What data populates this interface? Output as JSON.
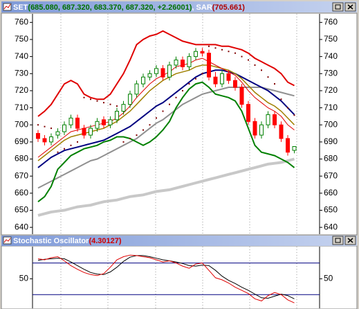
{
  "chart_data": [
    {
      "type": "candlestick",
      "header": [
        {
          "text": "SET",
          "color": "#ffffff"
        },
        {
          "text": "(685.080, 687.320, 683.370, 687.320, +2.26001)",
          "color": "#007000"
        },
        {
          "text": ", SAR",
          "color": "#ffffff"
        },
        {
          "text": "(705.661)",
          "color": "#b00000"
        }
      ],
      "ylim": [
        636,
        765
      ],
      "yticks": [
        640,
        650,
        660,
        670,
        680,
        690,
        700,
        710,
        720,
        730,
        740,
        750,
        760
      ],
      "up_color": "#008000",
      "down_color": "#ff0000",
      "open": [
        695,
        692,
        690,
        694,
        696,
        700,
        704,
        698,
        694,
        698,
        703,
        700,
        703,
        708,
        712,
        718,
        724,
        728,
        730,
        733,
        728,
        735,
        738,
        734,
        740,
        743,
        742,
        728,
        724,
        730,
        726,
        722,
        712,
        702,
        694,
        700,
        706,
        700,
        692,
        685.08
      ],
      "high": [
        697,
        694,
        695,
        698,
        702,
        706,
        706,
        700,
        700,
        704,
        705,
        705,
        710,
        714,
        720,
        726,
        730,
        732,
        735,
        735,
        737,
        740,
        740,
        742,
        745,
        745,
        744,
        731,
        732,
        732,
        728,
        724,
        714,
        704,
        702,
        708,
        708,
        702,
        694,
        687.32
      ],
      "low": [
        690,
        688,
        688,
        692,
        694,
        698,
        696,
        692,
        692,
        696,
        698,
        698,
        701,
        706,
        710,
        716,
        722,
        726,
        728,
        726,
        726,
        733,
        732,
        732,
        738,
        740,
        726,
        722,
        722,
        724,
        720,
        710,
        700,
        692,
        692,
        698,
        698,
        690,
        682,
        683.37
      ],
      "close": [
        692,
        690,
        693,
        696,
        700,
        704,
        698,
        694,
        698,
        702,
        700,
        703,
        708,
        712,
        718,
        724,
        728,
        730,
        733,
        728,
        735,
        738,
        734,
        740,
        743,
        742,
        728,
        724,
        730,
        726,
        722,
        712,
        702,
        694,
        700,
        706,
        700,
        692,
        684,
        687.32
      ],
      "overlays": [
        {
          "style": "line",
          "color": "#c8c8c8",
          "width": 4,
          "values": [
            647,
            648,
            649,
            649.5,
            650,
            651,
            652,
            652.5,
            653,
            654,
            655,
            655.5,
            656,
            657,
            658,
            658.5,
            659,
            660,
            661,
            661.5,
            662,
            663,
            664,
            665,
            666,
            667,
            668,
            669,
            670,
            671,
            672,
            673,
            674,
            675,
            676,
            677,
            677.5,
            678,
            679,
            680
          ]
        },
        {
          "style": "line",
          "color": "#909090",
          "width": 2,
          "values": [
            663,
            665,
            667,
            669,
            671,
            673,
            675,
            677,
            679,
            680,
            682,
            684,
            686,
            688,
            690,
            692,
            695,
            698,
            701,
            703,
            706,
            709,
            712,
            714,
            716,
            718,
            719,
            720,
            721,
            722,
            722,
            722,
            722,
            722,
            722,
            721,
            720,
            719,
            718,
            717
          ]
        },
        {
          "style": "line",
          "color": "#008000",
          "width": 2,
          "values": [
            655,
            658,
            664,
            674,
            678,
            682,
            684,
            686,
            687,
            688,
            690,
            691,
            693,
            693,
            692,
            690,
            688,
            690,
            693,
            697,
            702,
            710,
            716,
            721,
            724,
            725,
            722,
            718,
            717,
            716,
            714,
            708,
            698,
            688,
            684,
            683,
            682,
            680,
            678,
            675
          ]
        },
        {
          "style": "line",
          "color": "#e00000",
          "width": 2,
          "values": [
            705,
            708,
            712,
            718,
            724,
            726,
            724,
            718,
            716,
            715,
            715,
            718,
            724,
            730,
            738,
            747,
            750,
            752,
            753,
            755,
            753,
            751,
            749,
            748,
            747,
            747,
            747,
            747,
            746,
            746,
            745,
            744,
            742,
            739,
            737,
            735,
            733,
            730,
            725,
            723
          ]
        },
        {
          "style": "line",
          "color": "#000080",
          "width": 2,
          "values": [
            675,
            678,
            681,
            683,
            685,
            686,
            687,
            688,
            689,
            690,
            691,
            693,
            695,
            697,
            699,
            702,
            705,
            708,
            711,
            713,
            716,
            719,
            722,
            725,
            728,
            730,
            731,
            732,
            732,
            731,
            730,
            728,
            726,
            724,
            722,
            720,
            717,
            714,
            710,
            706
          ]
        },
        {
          "style": "line",
          "color": "#a08000",
          "width": 1.5,
          "values": [
            679,
            682,
            685,
            688,
            691,
            693,
            694,
            695,
            696,
            697,
            698,
            700,
            702,
            705,
            708,
            712,
            716,
            720,
            723,
            726,
            728,
            730,
            731,
            732,
            734,
            735,
            735,
            734,
            733,
            732,
            730,
            727,
            723,
            719,
            716,
            713,
            711,
            708,
            704,
            700
          ]
        },
        {
          "style": "line",
          "color": "#e00000",
          "width": 1,
          "values": [
            681,
            684,
            687,
            690,
            693,
            696,
            697,
            698,
            699,
            700,
            701,
            702,
            704,
            707,
            711,
            716,
            720,
            724,
            727,
            729,
            731,
            734,
            735,
            736,
            738,
            739,
            737,
            735,
            733,
            731,
            729,
            725,
            720,
            716,
            713,
            710,
            708,
            705,
            700,
            697
          ]
        },
        {
          "style": "dots",
          "color": "#800000",
          "width": 2,
          "values": [
            700,
            699,
            698,
            684,
            686,
            688,
            690,
            716,
            715,
            714,
            713,
            712,
            711,
            690,
            692,
            694,
            697,
            700,
            704,
            708,
            712,
            716,
            720,
            724,
            727,
            730,
            746,
            745,
            744,
            743,
            742,
            740,
            738,
            735,
            732,
            728,
            724,
            715,
            710,
            705.661
          ]
        }
      ]
    },
    {
      "type": "line",
      "header": [
        {
          "text": "Stochastic Oscillator",
          "color": "#ffffff"
        },
        {
          "text": "(4.30127)",
          "color": "#d00000"
        }
      ],
      "ylim": [
        -6,
        111
      ],
      "yticks": [
        50
      ],
      "reference_lines": [
        80,
        20
      ],
      "reference_color": "#000080",
      "series": [
        {
          "color": "#000000",
          "values": [
            85,
            87,
            88,
            89,
            88,
            82,
            75,
            68,
            62,
            59,
            58,
            63,
            72,
            83,
            91,
            94,
            94,
            92,
            89,
            86,
            84,
            82,
            79,
            75,
            74,
            76,
            75,
            66,
            55,
            47,
            41,
            34,
            28,
            21,
            14,
            13,
            17,
            21,
            18,
            12
          ]
        },
        {
          "color": "#e00000",
          "values": [
            88,
            86,
            90,
            92,
            84,
            75,
            68,
            62,
            58,
            56,
            60,
            72,
            86,
            92,
            95,
            94,
            92,
            90,
            86,
            82,
            84,
            80,
            74,
            70,
            78,
            80,
            66,
            52,
            48,
            42,
            34,
            28,
            22,
            12,
            8,
            18,
            24,
            20,
            10,
            4.30127
          ]
        }
      ]
    }
  ]
}
